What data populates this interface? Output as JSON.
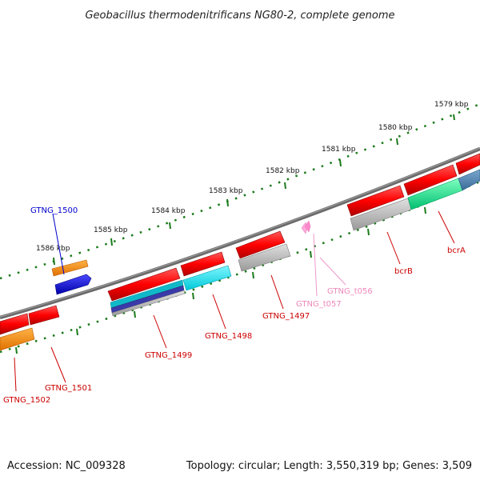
{
  "title": "Geobacillus thermodenitrificans NG80-2, complete genome",
  "footer": {
    "accession": "Accession: NC_009328",
    "summary": "Topology: circular; Length: 3,550,319 bp; Genes: 3,509"
  },
  "scale": {
    "kbp_labels": [
      "1579 kbp",
      "1580 kbp",
      "1581 kbp",
      "1582 kbp",
      "1583 kbp",
      "1584 kbp",
      "1585 kbp",
      "1586 kbp"
    ]
  },
  "genes": [
    {
      "name": "GTNG_1500",
      "color": "#0000cc",
      "kind": "gene",
      "strand": "forward"
    },
    {
      "name": "GTNG_1501",
      "color": "#cc0000",
      "kind": "gene",
      "strand": "reverse"
    },
    {
      "name": "GTNG_1502",
      "color": "#cc0000",
      "kind": "gene",
      "strand": "reverse"
    },
    {
      "name": "GTNG_1499",
      "color": "#cc0000",
      "kind": "gene",
      "strand": "reverse"
    },
    {
      "name": "GTNG_1498",
      "color": "#cc0000",
      "kind": "gene",
      "strand": "reverse"
    },
    {
      "name": "GTNG_1497",
      "color": "#cc0000",
      "kind": "gene",
      "strand": "reverse"
    },
    {
      "name": "GTNG_t057",
      "color": "#ee88bb",
      "kind": "tRNA",
      "strand": "reverse"
    },
    {
      "name": "GTNG_t056",
      "color": "#ee88bb",
      "kind": "tRNA",
      "strand": "reverse"
    },
    {
      "name": "bcrB",
      "color": "#cc0000",
      "kind": "gene",
      "strand": "reverse"
    },
    {
      "name": "bcrA",
      "color": "#cc0000",
      "kind": "gene",
      "strand": "reverse"
    }
  ],
  "legend_colors": {
    "gene": "#ff0000",
    "cog_orange": "#ff8c00",
    "cog_blue": "#0000ee",
    "cog_cyan": "#00e5ee",
    "cog_green": "#00ee88",
    "cog_gray": "#b0b0b0",
    "cog_steel": "#4682b4",
    "trna": "#ffaadd",
    "scale_ticks": "#1a7a1a",
    "backbone": "#777777"
  }
}
